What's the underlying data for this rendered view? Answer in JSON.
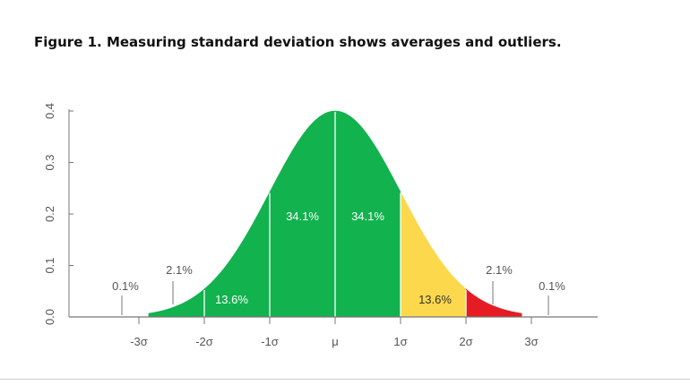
{
  "title": "Figure 1. Measuring standard deviation shows averages and outliers.",
  "chart_data": {
    "type": "area",
    "distribution": "normal",
    "mean": 0,
    "sd": 1,
    "xlim": [
      -3,
      3
    ],
    "ylim": [
      0,
      0.4
    ],
    "y_ticks": [
      0.0,
      0.1,
      0.2,
      0.3,
      0.4
    ],
    "y_tick_labels": [
      "0.0",
      "0.1",
      "0.2",
      "0.3",
      "0.4"
    ],
    "x_ticks": [
      -3,
      -2,
      -1,
      0,
      1,
      2,
      3
    ],
    "x_tick_labels": [
      "-3σ",
      "-2σ",
      "-1σ",
      "μ",
      "1σ",
      "2σ",
      "3σ"
    ],
    "colors": {
      "green": "#12b24f",
      "yellow": "#fcd84c",
      "red": "#e51c23",
      "axis": "#777777"
    },
    "regions": [
      {
        "from": -3,
        "to": -2,
        "color": "#12b24f",
        "label": "2.1%"
      },
      {
        "from": -2,
        "to": -1,
        "color": "#12b24f",
        "label": "13.6%"
      },
      {
        "from": -1,
        "to": 0,
        "color": "#12b24f",
        "label": "34.1%"
      },
      {
        "from": 0,
        "to": 1,
        "color": "#12b24f",
        "label": "34.1%"
      },
      {
        "from": 1,
        "to": 2,
        "color": "#fcd84c",
        "label": "13.6%"
      },
      {
        "from": 2,
        "to": 3,
        "color": "#e51c23",
        "label": "2.1%"
      }
    ],
    "tails": [
      {
        "side": "left",
        "label": "0.1%"
      },
      {
        "side": "right",
        "label": "0.1%"
      }
    ]
  }
}
